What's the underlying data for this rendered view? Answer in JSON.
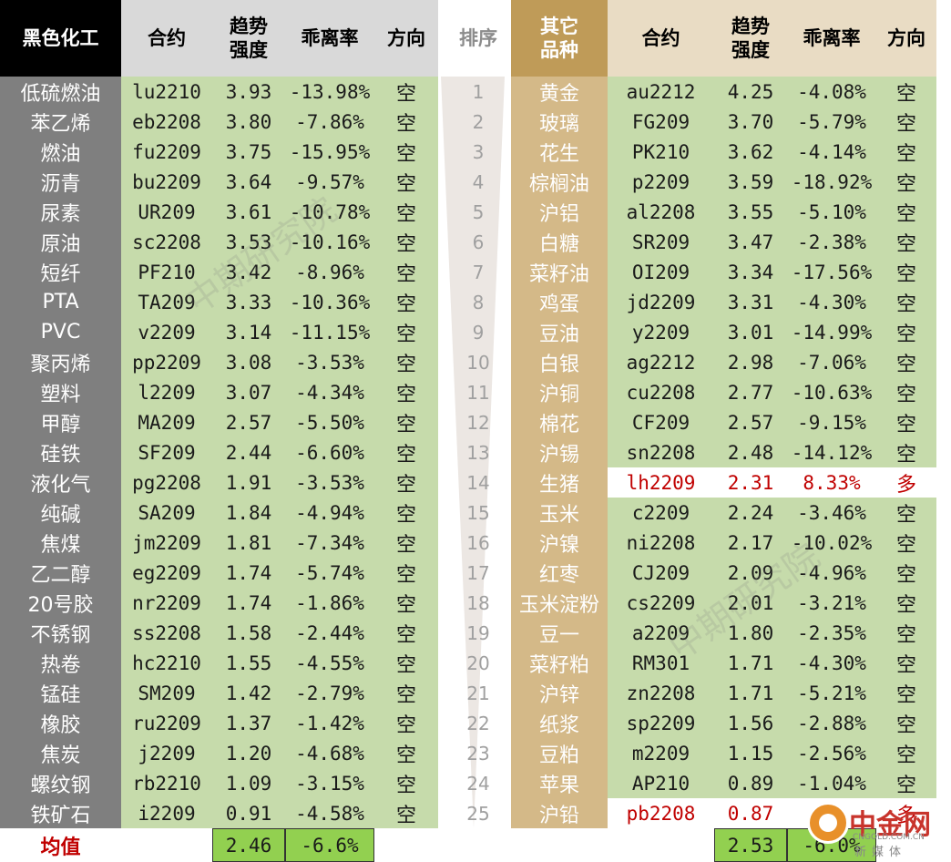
{
  "headers": {
    "left_group": "黑色化工",
    "contract": "合约",
    "trend_line1": "趋势",
    "trend_line2": "强度",
    "deviation": "乖离率",
    "direction": "方向",
    "rank": "排序",
    "right_group_line1": "其它",
    "right_group_line2": "品种"
  },
  "left_rows": [
    {
      "name": "低硫燃油",
      "contract": "lu2210",
      "trend": "3.93",
      "dev": "-13.98%",
      "dir": "空"
    },
    {
      "name": "苯乙烯",
      "contract": "eb2208",
      "trend": "3.80",
      "dev": "-7.86%",
      "dir": "空"
    },
    {
      "name": "燃油",
      "contract": "fu2209",
      "trend": "3.75",
      "dev": "-15.95%",
      "dir": "空"
    },
    {
      "name": "沥青",
      "contract": "bu2209",
      "trend": "3.64",
      "dev": "-9.57%",
      "dir": "空"
    },
    {
      "name": "尿素",
      "contract": "UR209",
      "trend": "3.61",
      "dev": "-10.78%",
      "dir": "空"
    },
    {
      "name": "原油",
      "contract": "sc2208",
      "trend": "3.53",
      "dev": "-10.16%",
      "dir": "空"
    },
    {
      "name": "短纤",
      "contract": "PF210",
      "trend": "3.42",
      "dev": "-8.96%",
      "dir": "空"
    },
    {
      "name": "PTA",
      "contract": "TA209",
      "trend": "3.33",
      "dev": "-10.36%",
      "dir": "空"
    },
    {
      "name": "PVC",
      "contract": "v2209",
      "trend": "3.14",
      "dev": "-11.15%",
      "dir": "空"
    },
    {
      "name": "聚丙烯",
      "contract": "pp2209",
      "trend": "3.08",
      "dev": "-3.53%",
      "dir": "空"
    },
    {
      "name": "塑料",
      "contract": "l2209",
      "trend": "3.07",
      "dev": "-4.34%",
      "dir": "空"
    },
    {
      "name": "甲醇",
      "contract": "MA209",
      "trend": "2.57",
      "dev": "-5.50%",
      "dir": "空"
    },
    {
      "name": "硅铁",
      "contract": "SF209",
      "trend": "2.44",
      "dev": "-6.60%",
      "dir": "空"
    },
    {
      "name": "液化气",
      "contract": "pg2208",
      "trend": "1.91",
      "dev": "-3.53%",
      "dir": "空"
    },
    {
      "name": "纯碱",
      "contract": "SA209",
      "trend": "1.84",
      "dev": "-4.94%",
      "dir": "空"
    },
    {
      "name": "焦煤",
      "contract": "jm2209",
      "trend": "1.81",
      "dev": "-7.34%",
      "dir": "空"
    },
    {
      "name": "乙二醇",
      "contract": "eg2209",
      "trend": "1.74",
      "dev": "-5.74%",
      "dir": "空"
    },
    {
      "name": "20号胶",
      "contract": "nr2209",
      "trend": "1.74",
      "dev": "-1.86%",
      "dir": "空"
    },
    {
      "name": "不锈钢",
      "contract": "ss2208",
      "trend": "1.58",
      "dev": "-2.44%",
      "dir": "空"
    },
    {
      "name": "热卷",
      "contract": "hc2210",
      "trend": "1.55",
      "dev": "-4.55%",
      "dir": "空"
    },
    {
      "name": "锰硅",
      "contract": "SM209",
      "trend": "1.42",
      "dev": "-2.79%",
      "dir": "空"
    },
    {
      "name": "橡胶",
      "contract": "ru2209",
      "trend": "1.37",
      "dev": "-1.42%",
      "dir": "空"
    },
    {
      "name": "焦炭",
      "contract": "j2209",
      "trend": "1.20",
      "dev": "-4.68%",
      "dir": "空"
    },
    {
      "name": "螺纹钢",
      "contract": "rb2210",
      "trend": "1.09",
      "dev": "-3.15%",
      "dir": "空"
    },
    {
      "name": "铁矿石",
      "contract": "i2209",
      "trend": "0.91",
      "dev": "-4.58%",
      "dir": "空"
    }
  ],
  "ranks": [
    "1",
    "2",
    "3",
    "4",
    "5",
    "6",
    "7",
    "8",
    "9",
    "10",
    "11",
    "12",
    "13",
    "14",
    "15",
    "16",
    "17",
    "18",
    "19",
    "20",
    "21",
    "22",
    "23",
    "24",
    "25"
  ],
  "right_rows": [
    {
      "name": "黄金",
      "contract": "au2212",
      "trend": "4.25",
      "dev": "-4.08%",
      "dir": "空"
    },
    {
      "name": "玻璃",
      "contract": "FG209",
      "trend": "3.70",
      "dev": "-5.79%",
      "dir": "空"
    },
    {
      "name": "花生",
      "contract": "PK210",
      "trend": "3.62",
      "dev": "-4.14%",
      "dir": "空"
    },
    {
      "name": "棕榈油",
      "contract": "p2209",
      "trend": "3.59",
      "dev": "-18.92%",
      "dir": "空"
    },
    {
      "name": "沪铝",
      "contract": "al2208",
      "trend": "3.55",
      "dev": "-5.10%",
      "dir": "空"
    },
    {
      "name": "白糖",
      "contract": "SR209",
      "trend": "3.47",
      "dev": "-2.38%",
      "dir": "空"
    },
    {
      "name": "菜籽油",
      "contract": "OI209",
      "trend": "3.34",
      "dev": "-17.56%",
      "dir": "空"
    },
    {
      "name": "鸡蛋",
      "contract": "jd2209",
      "trend": "3.31",
      "dev": "-4.30%",
      "dir": "空"
    },
    {
      "name": "豆油",
      "contract": "y2209",
      "trend": "3.01",
      "dev": "-14.99%",
      "dir": "空"
    },
    {
      "name": "白银",
      "contract": "ag2212",
      "trend": "2.98",
      "dev": "-7.06%",
      "dir": "空"
    },
    {
      "name": "沪铜",
      "contract": "cu2208",
      "trend": "2.77",
      "dev": "-10.63%",
      "dir": "空"
    },
    {
      "name": "棉花",
      "contract": "CF209",
      "trend": "2.57",
      "dev": "-9.15%",
      "dir": "空"
    },
    {
      "name": "沪锡",
      "contract": "sn2208",
      "trend": "2.48",
      "dev": "-14.12%",
      "dir": "空"
    },
    {
      "name": "生猪",
      "contract": "lh2209",
      "trend": "2.31",
      "dev": "8.33%",
      "dir": "多",
      "highlight": true
    },
    {
      "name": "玉米",
      "contract": "c2209",
      "trend": "2.24",
      "dev": "-3.46%",
      "dir": "空"
    },
    {
      "name": "沪镍",
      "contract": "ni2208",
      "trend": "2.17",
      "dev": "-10.02%",
      "dir": "空"
    },
    {
      "name": "红枣",
      "contract": "CJ209",
      "trend": "2.09",
      "dev": "-4.96%",
      "dir": "空"
    },
    {
      "name": "玉米淀粉",
      "contract": "cs2209",
      "trend": "2.01",
      "dev": "-3.21%",
      "dir": "空"
    },
    {
      "name": "豆一",
      "contract": "a2209",
      "trend": "1.80",
      "dev": "-2.35%",
      "dir": "空"
    },
    {
      "name": "菜籽粕",
      "contract": "RM301",
      "trend": "1.71",
      "dev": "-4.30%",
      "dir": "空"
    },
    {
      "name": "沪锌",
      "contract": "zn2208",
      "trend": "1.71",
      "dev": "-5.21%",
      "dir": "空"
    },
    {
      "name": "纸浆",
      "contract": "sp2209",
      "trend": "1.56",
      "dev": "-2.88%",
      "dir": "空"
    },
    {
      "name": "豆粕",
      "contract": "m2209",
      "trend": "1.15",
      "dev": "-2.56%",
      "dir": "空"
    },
    {
      "name": "苹果",
      "contract": "AP210",
      "trend": "0.89",
      "dev": "-1.04%",
      "dir": "空"
    },
    {
      "name": "沪铅",
      "contract": "pb2208",
      "trend": "0.87",
      "dev": "",
      "dir": "多",
      "highlight": true
    }
  ],
  "footer": {
    "label": "均值",
    "left_trend": "2.46",
    "left_dev": "-6.6%",
    "right_trend": "2.53",
    "right_dev": "-6.0%"
  },
  "watermark": "中期研究院",
  "logo": {
    "main": "中金网",
    "url": "CNGOLD.COM.CN",
    "sub": "新媒体"
  },
  "colors": {
    "green_cell": "#c6dbab",
    "footer_green": "#92d050",
    "left_header": "#000000",
    "left_name_col": "#7f7f7f",
    "right_header": "#bf9b58",
    "right_name_col": "#d4b988",
    "long_signal": "#c00000"
  }
}
